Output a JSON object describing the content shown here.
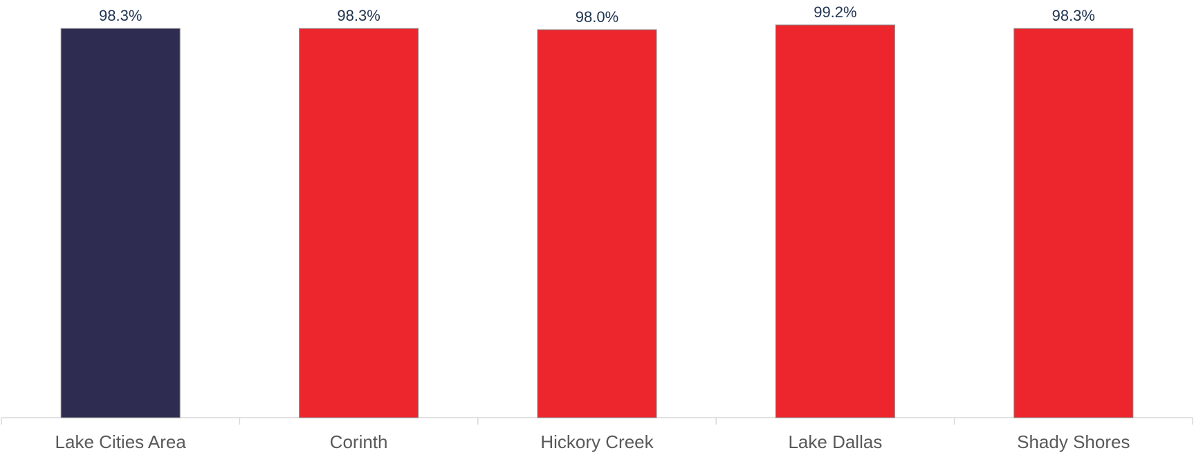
{
  "chart_data": {
    "type": "bar",
    "categories": [
      "Lake Cities Area",
      "Corinth",
      "Hickory Creek",
      "Lake Dallas",
      "Shady Shores"
    ],
    "values": [
      98.3,
      98.3,
      98.0,
      99.2,
      98.3
    ],
    "data_labels": [
      "98.3%",
      "98.3%",
      "98.0%",
      "99.2%",
      "98.3%"
    ],
    "value_unit": "%",
    "bar_colors": [
      "#2E2C50",
      "#EC262C",
      "#EC262C",
      "#EC262C",
      "#EC262C"
    ],
    "colors": {
      "data_label": "#1F3350",
      "category_label": "#595959",
      "axis_line": "#D9D9D9",
      "bar_outline": "#8A8A8A"
    },
    "ylim": [
      0,
      100
    ],
    "grid": false,
    "legend": "none"
  }
}
